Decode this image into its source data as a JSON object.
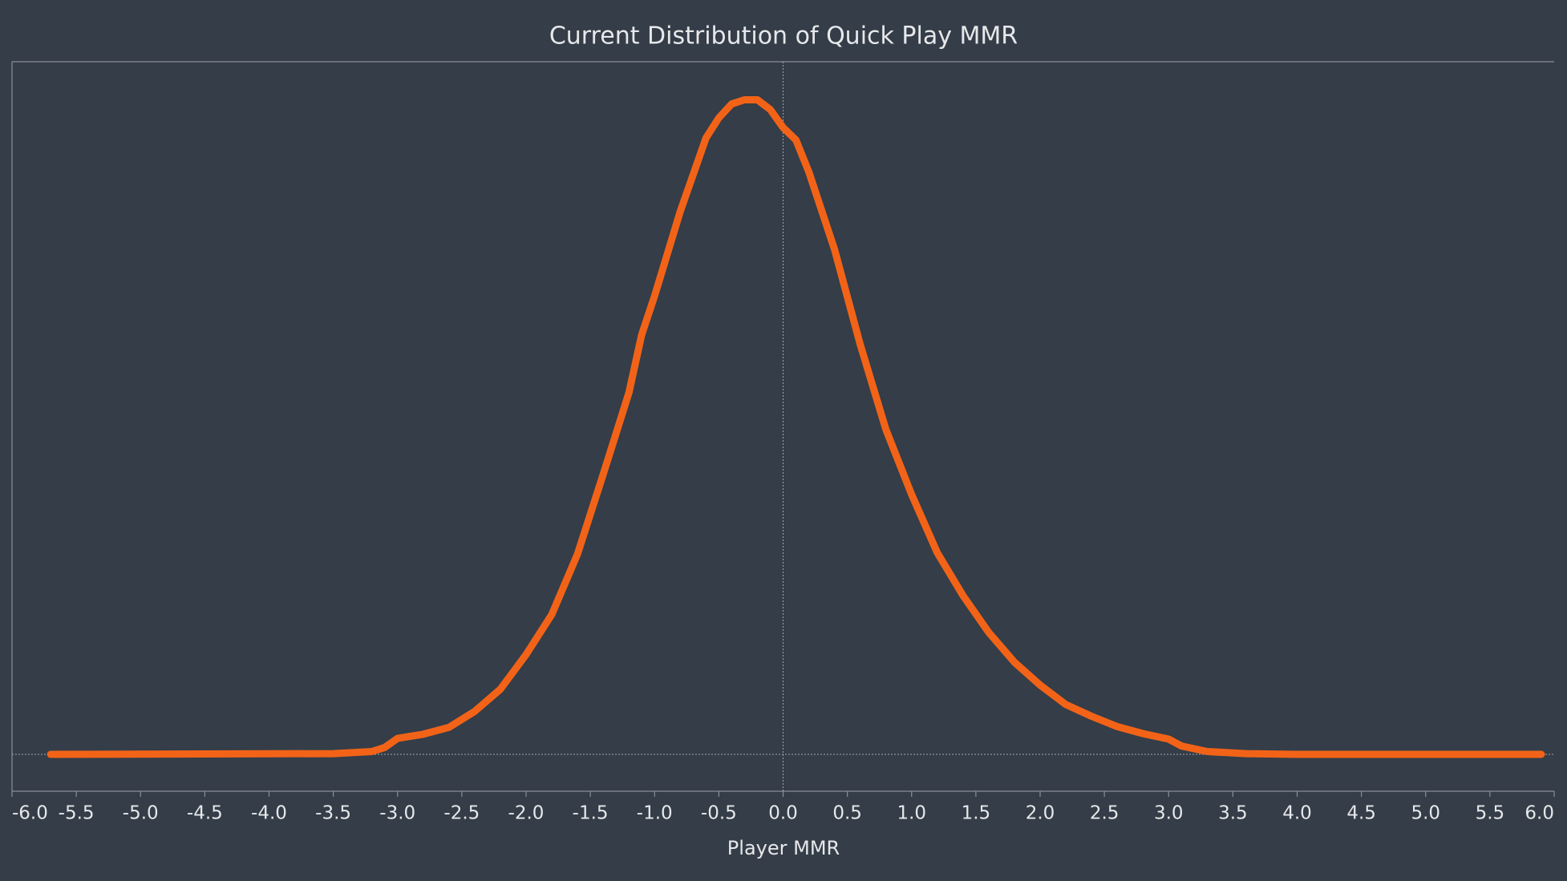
{
  "chart_data": {
    "type": "line",
    "title": "Current Distribution of Quick Play MMR",
    "x_label": "Player MMR",
    "xlim": [
      -6,
      6
    ],
    "ylim": [
      0,
      100
    ],
    "xticks": [
      {
        "value": -6.0,
        "label": "-6.0"
      },
      {
        "value": -5.5,
        "label": "-5.5"
      },
      {
        "value": -5.0,
        "label": "-5.0"
      },
      {
        "value": -4.5,
        "label": "-4.5"
      },
      {
        "value": -4.0,
        "label": "-4.0"
      },
      {
        "value": -3.5,
        "label": "-3.5"
      },
      {
        "value": -3.0,
        "label": "-3.0"
      },
      {
        "value": -2.5,
        "label": "-2.5"
      },
      {
        "value": -2.0,
        "label": "-2.0"
      },
      {
        "value": -1.5,
        "label": "-1.5"
      },
      {
        "value": -1.0,
        "label": "-1.0"
      },
      {
        "value": -0.5,
        "label": "-0.5"
      },
      {
        "value": 0.0,
        "label": "0.0"
      },
      {
        "value": 0.5,
        "label": "0.5"
      },
      {
        "value": 1.0,
        "label": "1.0"
      },
      {
        "value": 1.5,
        "label": "1.5"
      },
      {
        "value": 2.0,
        "label": "2.0"
      },
      {
        "value": 2.5,
        "label": "2.5"
      },
      {
        "value": 3.0,
        "label": "3.0"
      },
      {
        "value": 3.5,
        "label": "3.5"
      },
      {
        "value": 4.0,
        "label": "4.0"
      },
      {
        "value": 4.5,
        "label": "4.5"
      },
      {
        "value": 5.0,
        "label": "5.0"
      },
      {
        "value": 5.5,
        "label": "5.5"
      },
      {
        "value": 6.0,
        "label": "6.0"
      }
    ],
    "x": [
      -5.7,
      -3.5,
      -3.2,
      -3.1,
      -3.0,
      -2.8,
      -2.6,
      -2.4,
      -2.2,
      -2.0,
      -1.8,
      -1.6,
      -1.4,
      -1.2,
      -1.1,
      -1.0,
      -0.8,
      -0.6,
      -0.5,
      -0.4,
      -0.3,
      -0.2,
      -0.1,
      0.0,
      0.1,
      0.2,
      0.4,
      0.6,
      0.8,
      1.0,
      1.2,
      1.4,
      1.6,
      1.8,
      2.0,
      2.2,
      2.4,
      2.6,
      2.8,
      3.0,
      3.1,
      3.3,
      3.6,
      4.0,
      5.9
    ],
    "series": [
      {
        "color": "#f26318",
        "values": [
          0,
          0.1,
          0.4,
          1.0,
          2.3,
          2.9,
          3.9,
          6.2,
          9.4,
          14.4,
          20.2,
          28.9,
          40.4,
          52.2,
          60.6,
          66.2,
          78.4,
          89.0,
          91.9,
          93.9,
          94.5,
          94.5,
          93.1,
          90.5,
          88.7,
          84.1,
          72.9,
          59.2,
          46.9,
          37.5,
          29.1,
          22.9,
          17.6,
          13.3,
          10.0,
          7.2,
          5.5,
          4.0,
          3.0,
          2.2,
          1.2,
          0.4,
          0.1,
          0,
          0
        ]
      }
    ]
  }
}
